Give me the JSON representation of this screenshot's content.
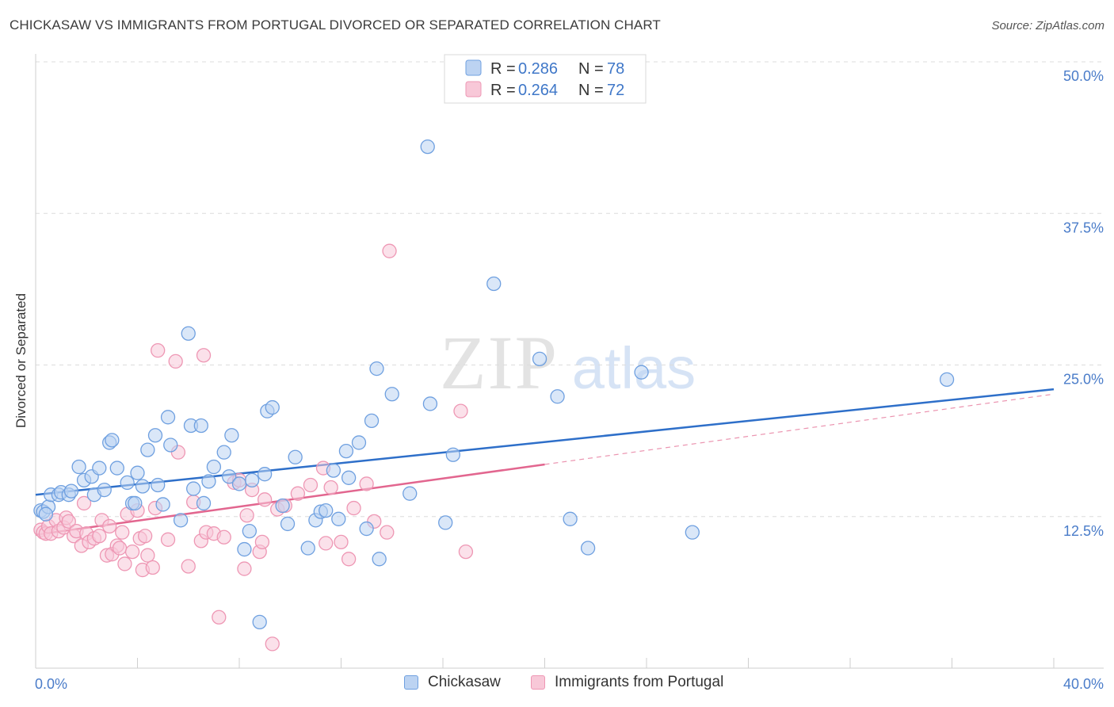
{
  "chart_data": {
    "type": "scatter",
    "title": "CHICKASAW VS IMMIGRANTS FROM PORTUGAL DIVORCED OR SEPARATED CORRELATION CHART",
    "source": "Source: ZipAtlas.com",
    "ylabel": "Divorced or Separated",
    "xlim": [
      0,
      40
    ],
    "ylim": [
      0,
      50
    ],
    "x_tick_labels": {
      "min": "0.0%",
      "max": "40.0%"
    },
    "y_ticks": [
      {
        "value": 12.5,
        "label": "12.5%"
      },
      {
        "value": 25.0,
        "label": "25.0%"
      },
      {
        "value": 37.5,
        "label": "37.5%"
      },
      {
        "value": 50.0,
        "label": "50.0%"
      }
    ],
    "watermark": {
      "part1": "ZIP",
      "part2": "atlas"
    },
    "legend": {
      "r_label": "R = ",
      "n_label": "N = ",
      "entries": [
        {
          "series": "Chickasaw",
          "r": "0.286",
          "n": "78"
        },
        {
          "series": "Immigrants from Portugal",
          "r": "0.264",
          "n": "72"
        }
      ]
    },
    "series": [
      {
        "name": "Chickasaw",
        "color": "#6fa0e0",
        "fill": "#bcd3f2",
        "trend": {
          "x0": 0,
          "y0": 14.3,
          "x1": 40,
          "y1": 23.0,
          "color": "#2e6fc9"
        },
        "points": [
          [
            0.2,
            13.0
          ],
          [
            0.3,
            12.9
          ],
          [
            0.5,
            13.3
          ],
          [
            0.6,
            14.3
          ],
          [
            0.9,
            14.3
          ],
          [
            1.0,
            14.5
          ],
          [
            1.3,
            14.3
          ],
          [
            1.4,
            14.6
          ],
          [
            1.7,
            16.6
          ],
          [
            1.9,
            15.5
          ],
          [
            2.2,
            15.8
          ],
          [
            2.3,
            14.3
          ],
          [
            2.5,
            16.5
          ],
          [
            2.7,
            14.7
          ],
          [
            2.9,
            18.6
          ],
          [
            3.0,
            18.8
          ],
          [
            3.2,
            16.5
          ],
          [
            3.6,
            15.3
          ],
          [
            3.8,
            13.6
          ],
          [
            3.9,
            13.6
          ],
          [
            4.0,
            16.1
          ],
          [
            4.2,
            15.0
          ],
          [
            4.4,
            18.0
          ],
          [
            4.7,
            19.2
          ],
          [
            4.8,
            15.1
          ],
          [
            5.0,
            13.5
          ],
          [
            5.2,
            20.7
          ],
          [
            5.3,
            18.4
          ],
          [
            5.7,
            12.2
          ],
          [
            6.0,
            27.6
          ],
          [
            6.1,
            20.0
          ],
          [
            6.2,
            14.8
          ],
          [
            6.5,
            20.0
          ],
          [
            6.6,
            13.6
          ],
          [
            6.8,
            15.4
          ],
          [
            7.0,
            16.6
          ],
          [
            7.4,
            17.8
          ],
          [
            7.6,
            15.8
          ],
          [
            7.7,
            19.2
          ],
          [
            8.0,
            15.2
          ],
          [
            8.2,
            9.8
          ],
          [
            8.4,
            11.3
          ],
          [
            8.5,
            15.5
          ],
          [
            8.8,
            3.8
          ],
          [
            9.0,
            16.0
          ],
          [
            9.1,
            21.2
          ],
          [
            9.3,
            21.5
          ],
          [
            9.7,
            13.4
          ],
          [
            9.9,
            11.9
          ],
          [
            10.2,
            17.4
          ],
          [
            10.7,
            9.9
          ],
          [
            11.0,
            12.2
          ],
          [
            11.2,
            12.9
          ],
          [
            11.4,
            13.0
          ],
          [
            11.7,
            16.3
          ],
          [
            11.9,
            12.3
          ],
          [
            12.2,
            17.9
          ],
          [
            12.3,
            15.7
          ],
          [
            12.7,
            18.6
          ],
          [
            13.0,
            11.5
          ],
          [
            13.2,
            20.4
          ],
          [
            13.4,
            24.7
          ],
          [
            13.5,
            9.0
          ],
          [
            14.0,
            22.6
          ],
          [
            14.7,
            14.4
          ],
          [
            15.4,
            43.0
          ],
          [
            15.5,
            21.8
          ],
          [
            16.1,
            12.0
          ],
          [
            16.4,
            17.6
          ],
          [
            18.0,
            31.7
          ],
          [
            19.8,
            25.5
          ],
          [
            20.5,
            22.4
          ],
          [
            21.0,
            12.3
          ],
          [
            21.7,
            9.9
          ],
          [
            23.8,
            24.4
          ],
          [
            25.8,
            11.2
          ],
          [
            35.8,
            23.8
          ],
          [
            0.4,
            12.7
          ]
        ]
      },
      {
        "name": "Immigrants from Portugal",
        "color": "#ee97b4",
        "fill": "#f8c8d8",
        "trend": {
          "x0": 0,
          "y0": 11.0,
          "x1": 20,
          "y1": 16.8,
          "color": "#e2668f"
        },
        "trend_ext": {
          "x0": 20,
          "y0": 16.8,
          "x1": 40,
          "y1": 22.6
        },
        "points": [
          [
            0.2,
            11.4
          ],
          [
            0.3,
            11.2
          ],
          [
            0.4,
            11.1
          ],
          [
            0.5,
            11.7
          ],
          [
            0.6,
            11.1
          ],
          [
            0.8,
            12.2
          ],
          [
            0.9,
            11.3
          ],
          [
            1.1,
            11.6
          ],
          [
            1.2,
            12.4
          ],
          [
            1.3,
            12.1
          ],
          [
            1.5,
            10.9
          ],
          [
            1.6,
            11.3
          ],
          [
            1.8,
            10.1
          ],
          [
            1.9,
            13.6
          ],
          [
            2.0,
            11.1
          ],
          [
            2.1,
            10.4
          ],
          [
            2.3,
            10.7
          ],
          [
            2.5,
            10.9
          ],
          [
            2.6,
            12.2
          ],
          [
            2.8,
            9.3
          ],
          [
            2.9,
            11.7
          ],
          [
            3.0,
            9.4
          ],
          [
            3.2,
            10.1
          ],
          [
            3.3,
            9.9
          ],
          [
            3.4,
            11.2
          ],
          [
            3.5,
            8.6
          ],
          [
            3.6,
            12.7
          ],
          [
            3.8,
            9.6
          ],
          [
            4.0,
            13.0
          ],
          [
            4.1,
            10.7
          ],
          [
            4.2,
            8.1
          ],
          [
            4.3,
            10.9
          ],
          [
            4.4,
            9.3
          ],
          [
            4.6,
            8.3
          ],
          [
            4.7,
            13.2
          ],
          [
            4.8,
            26.2
          ],
          [
            5.2,
            10.6
          ],
          [
            5.5,
            25.3
          ],
          [
            5.6,
            17.8
          ],
          [
            6.0,
            8.4
          ],
          [
            6.2,
            13.7
          ],
          [
            6.5,
            10.5
          ],
          [
            6.6,
            25.8
          ],
          [
            6.7,
            11.2
          ],
          [
            7.0,
            11.1
          ],
          [
            7.2,
            4.2
          ],
          [
            7.4,
            10.8
          ],
          [
            7.8,
            15.3
          ],
          [
            8.0,
            15.5
          ],
          [
            8.2,
            8.2
          ],
          [
            8.3,
            12.6
          ],
          [
            8.5,
            14.7
          ],
          [
            8.8,
            9.6
          ],
          [
            8.9,
            10.4
          ],
          [
            9.0,
            13.9
          ],
          [
            9.3,
            2.0
          ],
          [
            9.5,
            13.1
          ],
          [
            9.8,
            13.4
          ],
          [
            10.3,
            14.4
          ],
          [
            10.8,
            15.1
          ],
          [
            11.3,
            16.5
          ],
          [
            11.4,
            10.3
          ],
          [
            11.6,
            14.9
          ],
          [
            12.0,
            10.4
          ],
          [
            12.3,
            9.0
          ],
          [
            12.5,
            13.2
          ],
          [
            13.0,
            15.2
          ],
          [
            13.3,
            12.1
          ],
          [
            13.8,
            11.2
          ],
          [
            13.9,
            34.4
          ],
          [
            16.7,
            21.2
          ],
          [
            16.9,
            9.6
          ]
        ]
      }
    ]
  }
}
